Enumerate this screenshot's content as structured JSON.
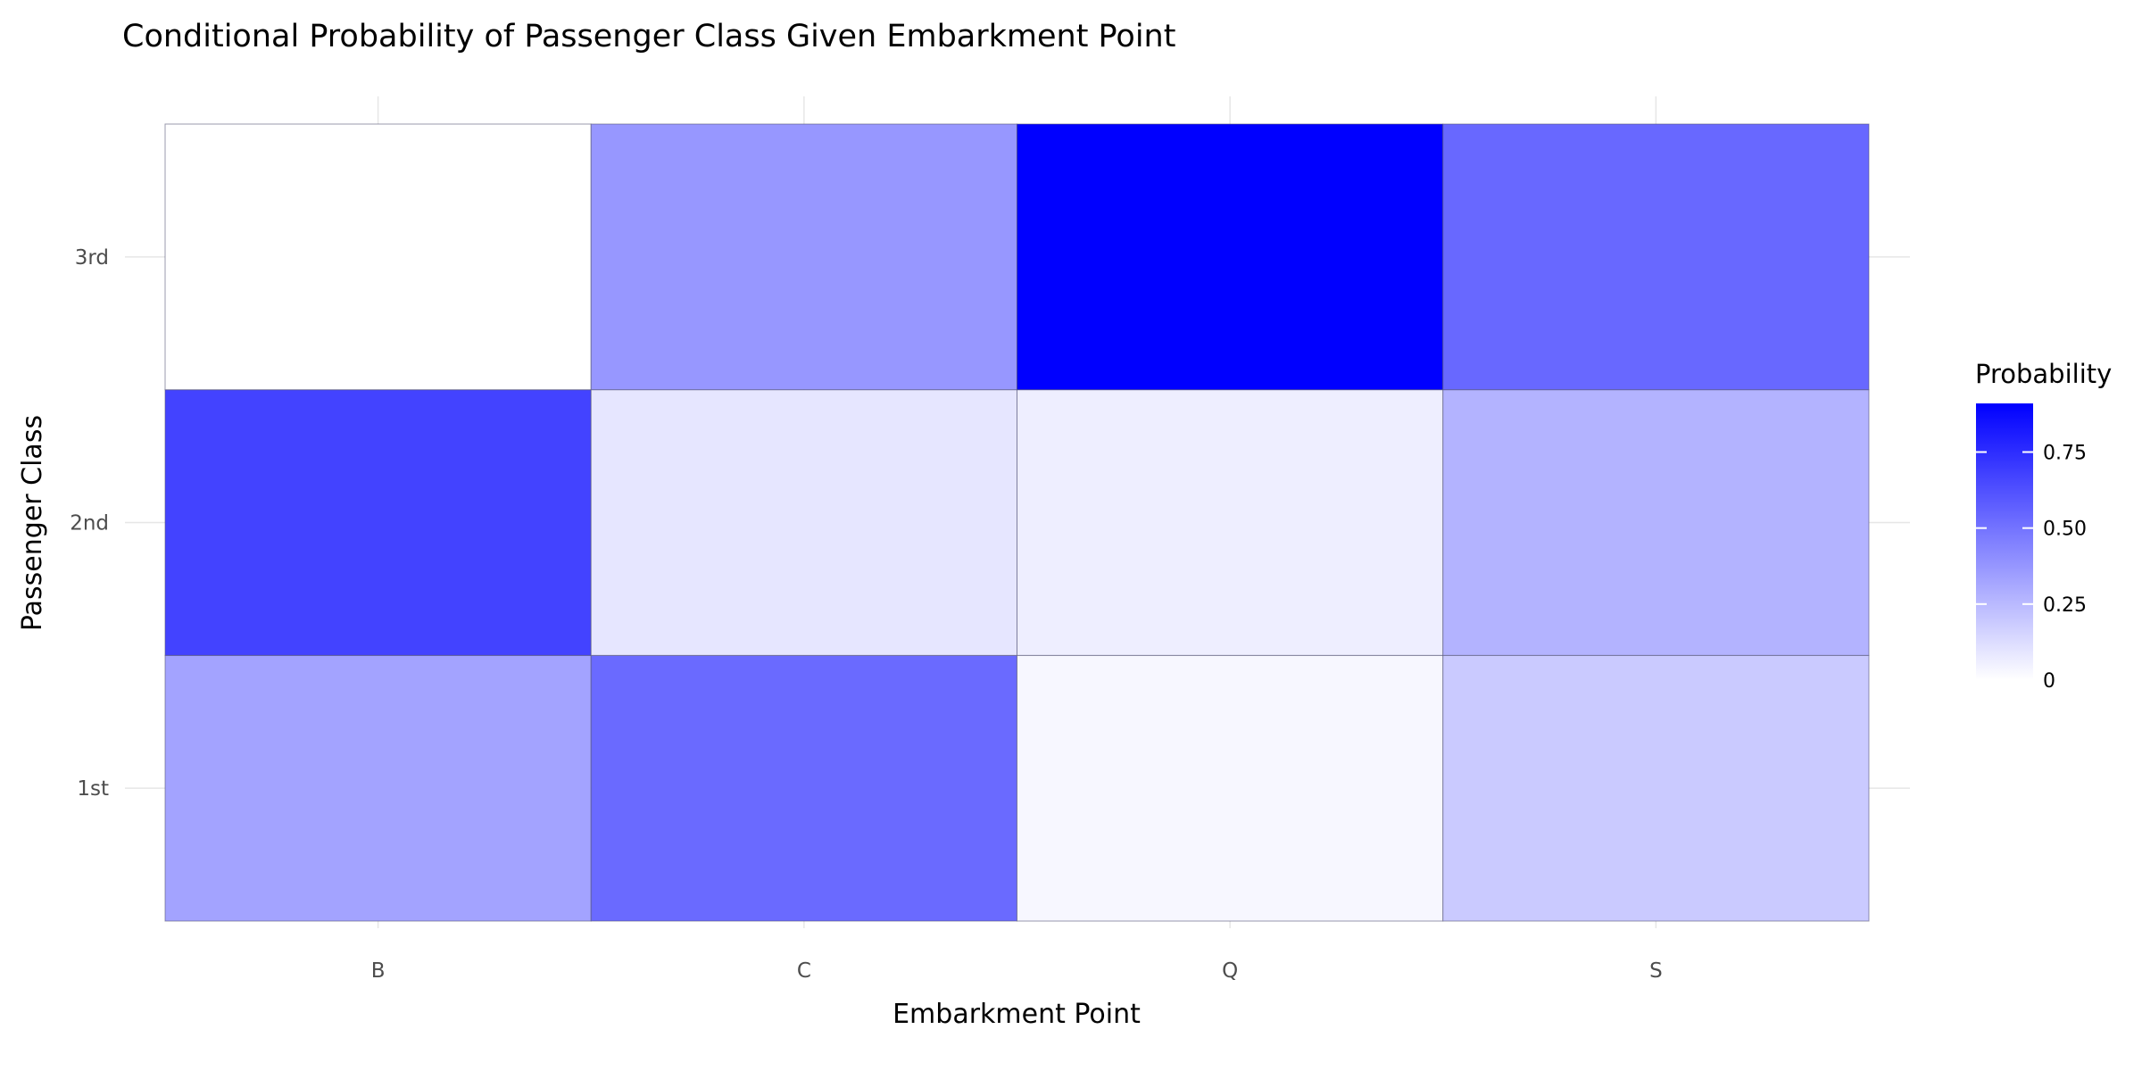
{
  "chart_data": {
    "type": "heatmap",
    "title": "Conditional Probability of Passenger Class Given Embarkment Point",
    "xlabel": "Embarkment Point",
    "ylabel": "Passenger Class",
    "x_categories": [
      "B",
      "C",
      "Q",
      "S"
    ],
    "y_categories": [
      "1st",
      "2nd",
      "3rd"
    ],
    "cells": [
      {
        "x": "B",
        "y": "1st",
        "value": 0.33
      },
      {
        "x": "B",
        "y": "2nd",
        "value": 0.67
      },
      {
        "x": "B",
        "y": "3rd",
        "value": 0.0
      },
      {
        "x": "C",
        "y": "1st",
        "value": 0.53
      },
      {
        "x": "C",
        "y": "2nd",
        "value": 0.09
      },
      {
        "x": "C",
        "y": "3rd",
        "value": 0.37
      },
      {
        "x": "Q",
        "y": "1st",
        "value": 0.03
      },
      {
        "x": "Q",
        "y": "2nd",
        "value": 0.06
      },
      {
        "x": "Q",
        "y": "3rd",
        "value": 0.91
      },
      {
        "x": "S",
        "y": "1st",
        "value": 0.19
      },
      {
        "x": "S",
        "y": "2nd",
        "value": 0.27
      },
      {
        "x": "S",
        "y": "3rd",
        "value": 0.54
      }
    ],
    "legend": {
      "title": "Probability",
      "ticks": [
        0,
        0.25,
        0.5,
        0.75
      ],
      "tick_labels": [
        "0",
        "0.25",
        "0.50",
        "0.75"
      ],
      "range": [
        0,
        0.91
      ],
      "position": "right"
    },
    "color_low": "#ffffff",
    "color_high": "#0000ff",
    "grid": true
  }
}
